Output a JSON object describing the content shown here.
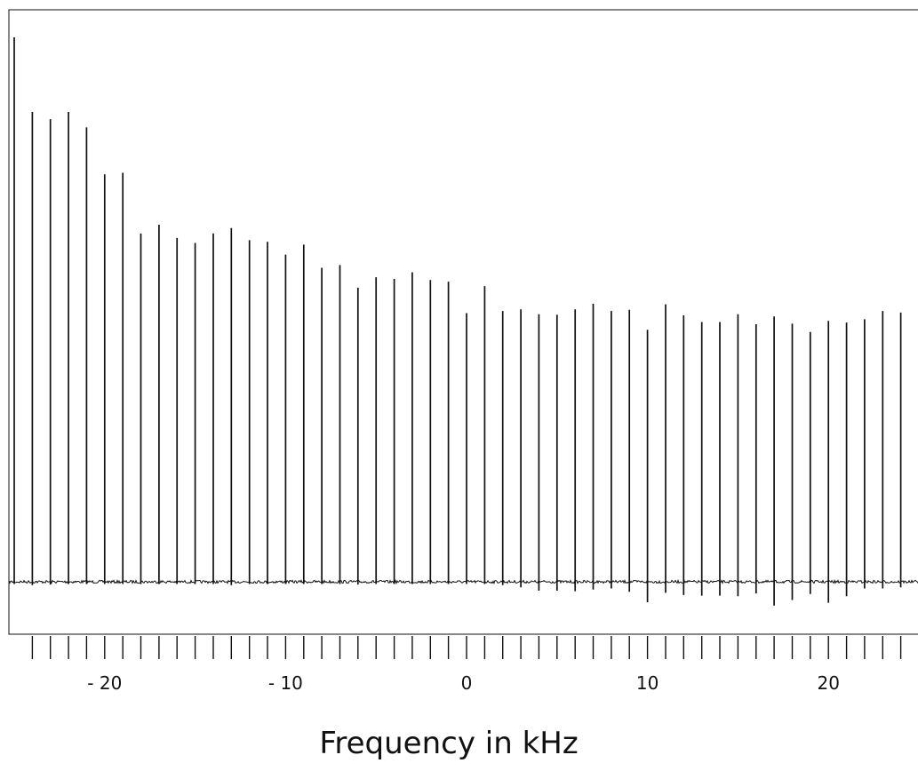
{
  "chart_data": {
    "type": "line",
    "title": "",
    "xlabel": "Frequency in kHz",
    "ylabel": "",
    "xlim": [
      -25.5,
      25.5
    ],
    "ylim": [
      -0.05,
      1.0
    ],
    "grid": false,
    "legend": "none",
    "x_ticks": [
      -24,
      -23,
      -22,
      -21,
      -20,
      -19,
      -18,
      -17,
      -16,
      -15,
      -14,
      -13,
      -12,
      -11,
      -10,
      -9,
      -8,
      -7,
      -6,
      -5,
      -4,
      -3,
      -2,
      -1,
      0,
      1,
      2,
      3,
      4,
      5,
      6,
      7,
      8,
      9,
      10,
      11,
      12,
      13,
      14,
      15,
      16,
      17,
      18,
      19,
      20,
      21,
      22,
      23,
      24,
      25
    ],
    "x_tick_labels": [
      {
        "value": -20,
        "text": "- 20"
      },
      {
        "value": -10,
        "text": "- 10"
      },
      {
        "value": 0,
        "text": "0"
      },
      {
        "value": 10,
        "text": "10"
      },
      {
        "value": 20,
        "text": "20"
      }
    ],
    "baseline": 0,
    "series": [
      {
        "x": [
          -25,
          -24,
          -23,
          -22,
          -21,
          -20,
          -19,
          -18,
          -17,
          -16,
          -15,
          -14,
          -13,
          -12,
          -11,
          -10,
          -9,
          -8,
          -7,
          -6,
          -5,
          -4,
          -3,
          -2,
          -1,
          0,
          1,
          2,
          3,
          4,
          5,
          6,
          7,
          8,
          9,
          10,
          11,
          12,
          13,
          14,
          15,
          16,
          17,
          18,
          19,
          20,
          21,
          22,
          23,
          24,
          25
        ],
        "values": [
          0.985,
          0.85,
          0.837,
          0.85,
          0.822,
          0.737,
          0.74,
          0.63,
          0.646,
          0.622,
          0.613,
          0.63,
          0.64,
          0.618,
          0.615,
          0.592,
          0.61,
          0.568,
          0.573,
          0.532,
          0.551,
          0.548,
          0.56,
          0.546,
          0.543,
          0.486,
          0.535,
          0.49,
          0.493,
          0.484,
          0.483,
          0.493,
          0.503,
          0.49,
          0.492,
          0.456,
          0.502,
          0.482,
          0.47,
          0.47,
          0.484,
          0.466,
          0.48,
          0.467,
          0.452,
          0.472,
          0.469,
          0.475,
          0.49,
          0.487,
          0.446
        ],
        "dips": [
          0.004,
          0.006,
          0.005,
          0.004,
          0.004,
          0.004,
          0.004,
          0.004,
          0.004,
          0.004,
          0.004,
          0.004,
          0.006,
          0.004,
          0.004,
          0.004,
          0.004,
          0.004,
          0.004,
          0.005,
          0.004,
          0.004,
          0.004,
          0.004,
          0.004,
          0.004,
          0.004,
          0.006,
          0.01,
          0.016,
          0.016,
          0.017,
          0.014,
          0.012,
          0.018,
          0.037,
          0.02,
          0.024,
          0.025,
          0.025,
          0.026,
          0.021,
          0.043,
          0.033,
          0.022,
          0.038,
          0.026,
          0.012,
          0.012,
          0.01,
          0.01
        ]
      }
    ]
  }
}
